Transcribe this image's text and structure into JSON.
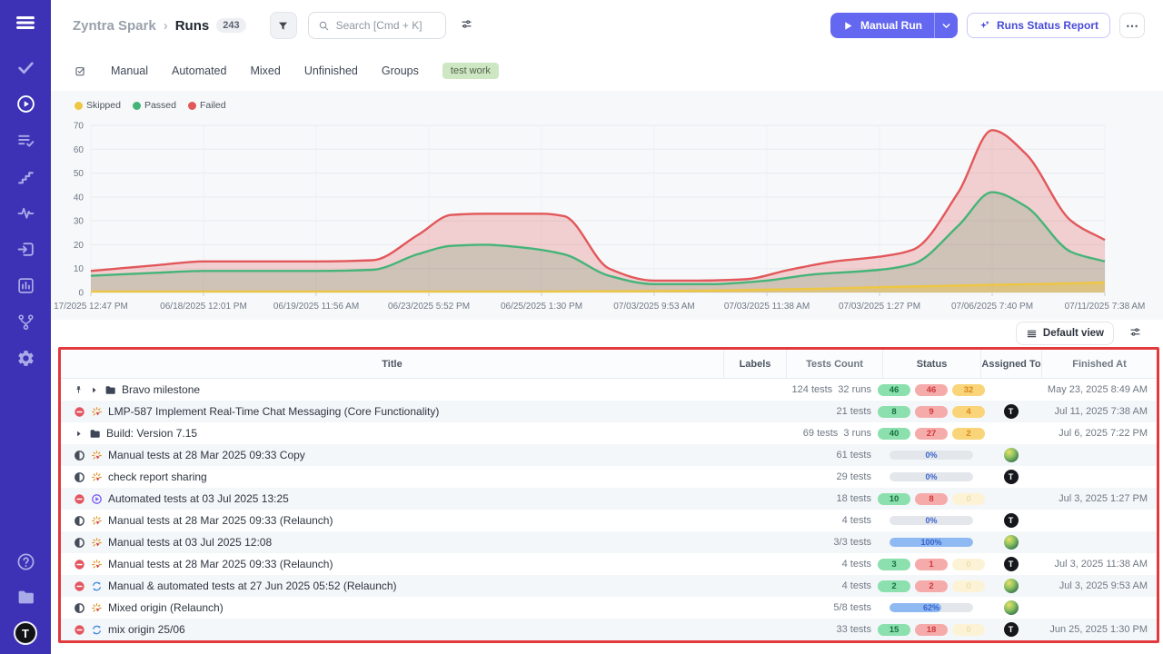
{
  "colors": {
    "sidebar": "#3d31b5",
    "accent": "#6467ef",
    "annotation": "#e23a3c",
    "tag_bg": "#cde7c3",
    "tag_fg": "#55614f"
  },
  "sidebar": {
    "items": [
      {
        "icon": "menu-icon",
        "active": false
      },
      {
        "icon": "check-icon",
        "active": false
      },
      {
        "icon": "play-circle-icon",
        "active": true
      },
      {
        "icon": "list-check-icon",
        "active": false
      },
      {
        "icon": "milestones-icon",
        "active": false
      },
      {
        "icon": "pulse-icon",
        "active": false
      },
      {
        "icon": "import-icon",
        "active": false
      },
      {
        "icon": "chart-icon",
        "active": false
      },
      {
        "icon": "branch-icon",
        "active": false
      },
      {
        "icon": "gear-icon",
        "active": false
      }
    ],
    "bottom": [
      {
        "icon": "help-icon"
      },
      {
        "icon": "folder-icon"
      }
    ],
    "avatar_label": "T"
  },
  "header": {
    "breadcrumb": {
      "project": "Zyntra Spark",
      "separator": "›",
      "page": "Runs",
      "count": "243"
    },
    "search": {
      "placeholder": "Search [Cmd + K]"
    },
    "actions": {
      "manual_run": "Manual Run",
      "runs_status_report": "Runs Status Report",
      "more": "⋯"
    }
  },
  "tabs": {
    "items": [
      "Manual",
      "Automated",
      "Mixed",
      "Unfinished",
      "Groups"
    ],
    "tag": "test work"
  },
  "chart_data": {
    "type": "area",
    "title": "",
    "legend_position": "top-left",
    "grid": true,
    "ylim": [
      0,
      70
    ],
    "yticks": [
      0,
      10,
      20,
      30,
      40,
      50,
      60,
      70
    ],
    "x_labels": [
      "17/2025 12:47 PM",
      "06/18/2025 12:01 PM",
      "06/19/2025 11:56 AM",
      "06/23/2025 5:52 PM",
      "06/25/2025 1:30 PM",
      "07/03/2025 9:53 AM",
      "07/03/2025 11:38 AM",
      "07/03/2025 1:27 PM",
      "07/06/2025 7:40 PM",
      "07/11/2025 7:38 AM"
    ],
    "series": [
      {
        "name": "Skipped",
        "color": "#edc642",
        "points": [
          [
            0,
            0.4
          ],
          [
            1,
            0.4
          ],
          [
            2,
            0.4
          ],
          [
            3,
            0.4
          ],
          [
            4,
            0.4
          ],
          [
            5,
            0.6
          ],
          [
            5.5,
            0.8
          ],
          [
            6,
            1.2
          ],
          [
            6.5,
            1.6
          ],
          [
            7,
            2.2
          ],
          [
            7.5,
            2.7
          ],
          [
            8,
            3.2
          ],
          [
            8.5,
            3.6
          ],
          [
            9,
            4.2
          ]
        ]
      },
      {
        "name": "Passed",
        "color": "#45b478",
        "points": [
          [
            0,
            7
          ],
          [
            0.6,
            8.3
          ],
          [
            1,
            9
          ],
          [
            2,
            9
          ],
          [
            2.5,
            9.5
          ],
          [
            2.9,
            16
          ],
          [
            3.2,
            19.5
          ],
          [
            3.5,
            20
          ],
          [
            3.8,
            19
          ],
          [
            4.2,
            16
          ],
          [
            4.6,
            7
          ],
          [
            5,
            3.5
          ],
          [
            5.5,
            3.5
          ],
          [
            6,
            5
          ],
          [
            6.4,
            7.5
          ],
          [
            7,
            9.5
          ],
          [
            7.3,
            12
          ],
          [
            7.7,
            28
          ],
          [
            8,
            42
          ],
          [
            8.3,
            36
          ],
          [
            8.7,
            17
          ],
          [
            9,
            13
          ]
        ]
      },
      {
        "name": "Failed",
        "color": "#e2575a",
        "points": [
          [
            0,
            9
          ],
          [
            0.6,
            11.5
          ],
          [
            1,
            13
          ],
          [
            1.6,
            13
          ],
          [
            2,
            13
          ],
          [
            2.5,
            13.5
          ],
          [
            2.9,
            24
          ],
          [
            3.2,
            32.5
          ],
          [
            3.5,
            33
          ],
          [
            4,
            33
          ],
          [
            4.2,
            32
          ],
          [
            4.6,
            10
          ],
          [
            5,
            5
          ],
          [
            5.4,
            5
          ],
          [
            5.8,
            5.5
          ],
          [
            6.2,
            9.5
          ],
          [
            6.6,
            13
          ],
          [
            7,
            15
          ],
          [
            7.3,
            18
          ],
          [
            7.7,
            42
          ],
          [
            8,
            68
          ],
          [
            8.3,
            58
          ],
          [
            8.7,
            30
          ],
          [
            9,
            22
          ]
        ]
      }
    ]
  },
  "view_bar": {
    "default_view": "Default view"
  },
  "table": {
    "columns": [
      "Title",
      "Labels",
      "Tests Count",
      "Status",
      "Assigned To",
      "Finished At"
    ],
    "rows": [
      {
        "kind": "folder",
        "pinned": true,
        "status": null,
        "origin": null,
        "title": "Bravo milestone",
        "tests": "124 tests  32 runs",
        "result": {
          "type": "badges",
          "passed": 46,
          "failed": 46,
          "skipped": 32
        },
        "assignee": null,
        "finished": "May 23, 2025 8:49 AM"
      },
      {
        "kind": "run",
        "pinned": false,
        "status": "stopped",
        "origin": "manual",
        "title": "LMP-587 Implement Real-Time Chat Messaging (Core Functionality)",
        "tests": "21 tests",
        "result": {
          "type": "badges",
          "passed": 8,
          "failed": 9,
          "skipped": 4
        },
        "assignee": "t-logo",
        "finished": "Jul 11, 2025 7:38 AM"
      },
      {
        "kind": "folder",
        "pinned": false,
        "status": null,
        "origin": null,
        "title": "Build: Version 7.15",
        "tests": "69 tests  3 runs",
        "result": {
          "type": "badges",
          "passed": 40,
          "failed": 27,
          "skipped": 2
        },
        "assignee": null,
        "finished": "Jul 6, 2025 7:22 PM"
      },
      {
        "kind": "run",
        "pinned": false,
        "status": "in_progress",
        "origin": "manual",
        "title": "Manual tests at 28 Mar 2025 09:33 Copy",
        "tests": "61 tests",
        "result": {
          "type": "progress",
          "pct": 0,
          "label": "0%"
        },
        "assignee": "photo",
        "finished": ""
      },
      {
        "kind": "run",
        "pinned": false,
        "status": "in_progress",
        "origin": "manual",
        "title": "check report sharing",
        "tests": "29 tests",
        "result": {
          "type": "progress",
          "pct": 0,
          "label": "0%"
        },
        "assignee": "t-logo",
        "finished": ""
      },
      {
        "kind": "run",
        "pinned": false,
        "status": "stopped",
        "origin": "automated",
        "title": "Automated tests at 03 Jul 2025 13:25",
        "tests": "18 tests",
        "result": {
          "type": "badges",
          "passed": 10,
          "failed": 8,
          "skipped": 0
        },
        "assignee": null,
        "finished": "Jul 3, 2025 1:27 PM"
      },
      {
        "kind": "run",
        "pinned": false,
        "status": "in_progress",
        "origin": "manual",
        "title": "Manual tests at 28 Mar 2025 09:33 (Relaunch)",
        "tests": "4 tests",
        "result": {
          "type": "progress",
          "pct": 0,
          "label": "0%"
        },
        "assignee": "t-logo",
        "finished": ""
      },
      {
        "kind": "run",
        "pinned": false,
        "status": "in_progress",
        "origin": "manual",
        "title": "Manual tests at 03 Jul 2025 12:08",
        "tests": "3/3 tests",
        "result": {
          "type": "progress",
          "pct": 100,
          "label": "100%"
        },
        "assignee": "photo",
        "finished": ""
      },
      {
        "kind": "run",
        "pinned": false,
        "status": "stopped",
        "origin": "manual",
        "title": "Manual tests at 28 Mar 2025 09:33 (Relaunch)",
        "tests": "4 tests",
        "result": {
          "type": "badges",
          "passed": 3,
          "failed": 1,
          "skipped": 0
        },
        "assignee": "t-logo",
        "finished": "Jul 3, 2025 11:38 AM"
      },
      {
        "kind": "run",
        "pinned": false,
        "status": "stopped",
        "origin": "mixed",
        "title": "Manual & automated tests at 27 Jun 2025 05:52 (Relaunch)",
        "tests": "4 tests",
        "result": {
          "type": "badges",
          "passed": 2,
          "failed": 2,
          "skipped": 0
        },
        "assignee": "photo",
        "finished": "Jul 3, 2025 9:53 AM"
      },
      {
        "kind": "run",
        "pinned": false,
        "status": "in_progress",
        "origin": "manual",
        "title": "Mixed origin (Relaunch)",
        "tests": "5/8 tests",
        "result": {
          "type": "progress",
          "pct": 62,
          "label": "62%"
        },
        "assignee": "photo",
        "finished": ""
      },
      {
        "kind": "run",
        "pinned": false,
        "status": "stopped",
        "origin": "mixed",
        "title": "mix origin 25/06",
        "tests": "33 tests",
        "result": {
          "type": "badges",
          "passed": 15,
          "failed": 18,
          "skipped": 0
        },
        "assignee": "t-logo",
        "finished": "Jun 25, 2025 1:30 PM"
      }
    ]
  }
}
